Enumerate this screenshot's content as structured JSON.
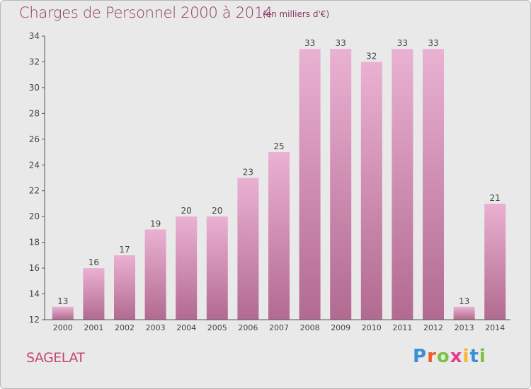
{
  "header": {
    "title": "Charges de Personnel 2000 à 2014",
    "subtitle": "(en milliers d'€)"
  },
  "footer": {
    "commune": "SAGELAT",
    "logo": {
      "text": "Proxiti",
      "letter_colors": [
        "#3a8fd6",
        "#e85d2a",
        "#7cc242",
        "#e43b8c",
        "#f5b731",
        "#3a8fd6",
        "#7cc242"
      ]
    }
  },
  "colors": {
    "bar_top": "#eab1d2",
    "bar_bottom": "#b26a91",
    "axis": "#555555",
    "text": "#444444"
  },
  "chart_data": {
    "type": "bar",
    "categories": [
      "2000",
      "2001",
      "2002",
      "2003",
      "2004",
      "2005",
      "2006",
      "2007",
      "2008",
      "2009",
      "2010",
      "2011",
      "2012",
      "2013",
      "2014"
    ],
    "values": [
      13,
      16,
      17,
      19,
      20,
      20,
      23,
      25,
      33,
      33,
      32,
      33,
      33,
      13,
      21
    ],
    "ylim": [
      12,
      34
    ],
    "yticks": [
      12,
      14,
      16,
      18,
      20,
      22,
      24,
      26,
      28,
      30,
      32,
      34
    ],
    "grid": false
  }
}
